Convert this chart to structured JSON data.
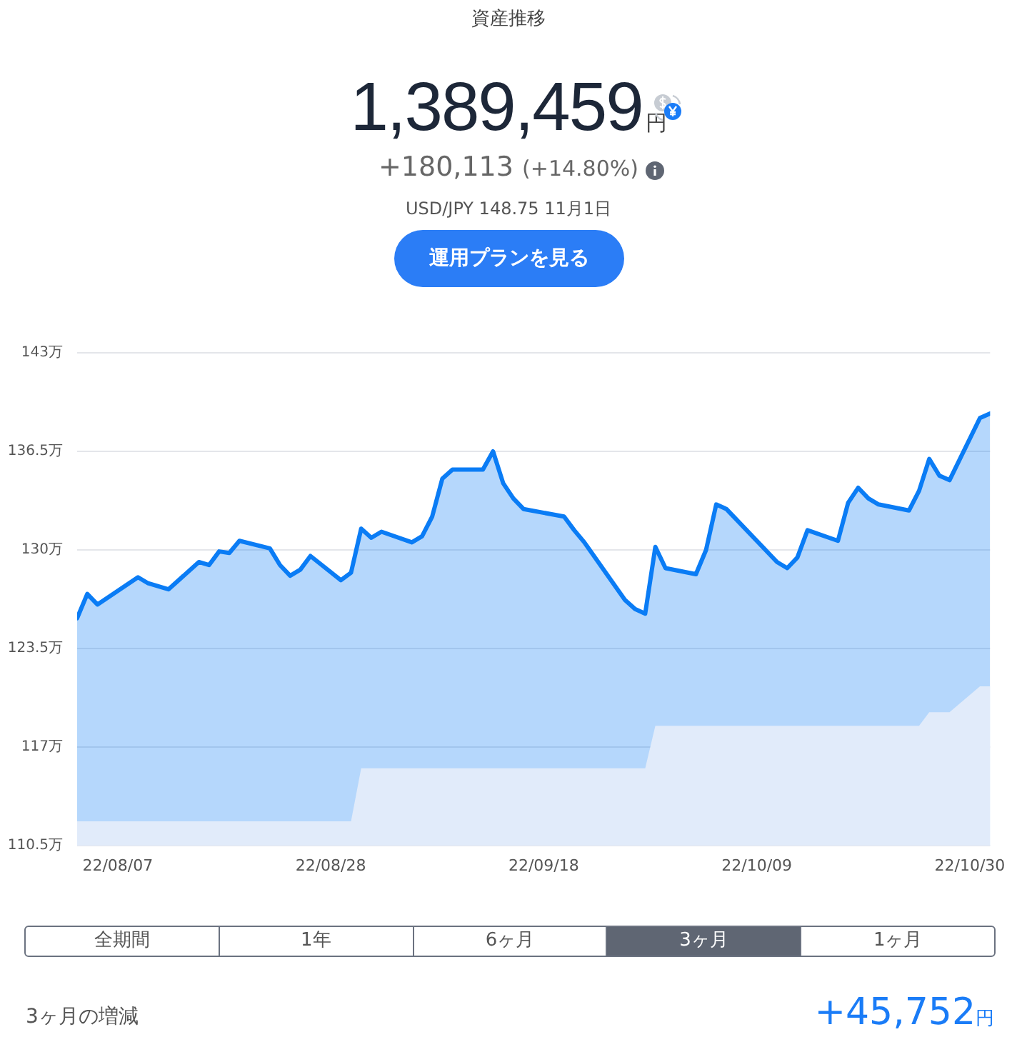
{
  "chart_data": {
    "type": "area",
    "title": "資産推移",
    "annotations": [
      "1,389,459",
      "円",
      "+180,113",
      "(+14.80%)",
      "USD/JPY 148.75 11月1日",
      "運用プランを見る",
      "全期間",
      "1年",
      "6ヶ月",
      "3ヶ月",
      "1ヶ月",
      "3ヶ月の増減",
      "+45,752",
      "円"
    ],
    "series": [
      {
        "color": "#0a7cf5",
        "x": [
          "--08-03",
          "--08-04",
          "--08-05",
          "--08-09",
          "--08-10",
          "--08-12",
          "--08-15",
          "--08-16",
          "--08-17",
          "--08-18",
          "--08-19",
          "--08-22",
          "--08-23",
          "--08-24",
          "--08-25",
          "--08-26",
          "--08-29",
          "--08-30",
          "--08-31",
          "--09-01",
          "--09-02",
          "--09-05",
          "--09-06",
          "--09-07",
          "--09-08",
          "--09-09",
          "--09-12",
          "--09-13",
          "--09-14",
          "--09-15",
          "--09-16",
          "--09-20",
          "--09-21",
          "--09-22",
          "--09-26",
          "--09-27",
          "--09-28",
          "--09-29",
          "--09-30",
          "--10-03",
          "--10-04",
          "--10-05",
          "--10-06",
          "--10-11",
          "--10-12",
          "--10-13",
          "--10-14",
          "--10-17",
          "--10-18",
          "--10-19",
          "--10-20",
          "--10-21",
          "--10-24",
          "--10-25",
          "--10-26",
          "--10-27",
          "--10-28",
          "--10-31",
          "--11-01"
        ],
        "values": [
          125.5,
          127.1,
          126.4,
          128.2,
          127.8,
          127.4,
          129.2,
          129.0,
          129.9,
          129.8,
          130.6,
          130.1,
          129.0,
          128.3,
          128.7,
          129.6,
          128.0,
          128.5,
          131.4,
          130.8,
          131.2,
          130.5,
          130.9,
          132.2,
          134.7,
          135.3,
          135.3,
          136.5,
          134.4,
          133.4,
          132.7,
          132.2,
          131.3,
          130.5,
          126.7,
          126.1,
          125.8,
          130.2,
          128.8,
          128.4,
          130.0,
          133.0,
          132.7,
          129.2,
          128.8,
          129.5,
          131.3,
          130.6,
          133.1,
          134.1,
          133.4,
          133.0,
          132.6,
          133.9,
          136.0,
          134.9,
          134.6,
          138.7,
          139.0
        ]
      },
      {
        "color": "#e1ebfa",
        "line_style": "none",
        "x": [
          "--08-03",
          "--08-30",
          "--08-31",
          "--09-28",
          "--09-29",
          "--10-25",
          "--10-26",
          "--10-28",
          "--10-31",
          "--11-01"
        ],
        "values": [
          112.1,
          112.1,
          115.6,
          115.6,
          118.4,
          118.4,
          119.3,
          119.3,
          121.0,
          121.0
        ]
      }
    ],
    "xlim": [
      "--08-03",
      "--11-01"
    ],
    "xticks": [
      {
        "value": "--08-07",
        "label": "22/08/07"
      },
      {
        "value": "--08-28",
        "label": "22/08/28"
      },
      {
        "value": "--09-18",
        "label": "22/09/18"
      },
      {
        "value": "--10-09",
        "label": "22/10/09"
      },
      {
        "value": "--10-30",
        "label": "22/10/30"
      }
    ],
    "ylim": [
      110.5,
      143
    ],
    "yticks": [
      {
        "value": 110.5,
        "label": "110.5万"
      },
      {
        "value": 117,
        "label": "117万"
      },
      {
        "value": 123.5,
        "label": "123.5万"
      },
      {
        "value": 130,
        "label": "130万"
      },
      {
        "value": 136.5,
        "label": "136.5万"
      },
      {
        "value": 143,
        "label": "143万"
      }
    ],
    "grid": "y",
    "legend": false,
    "marker": "none",
    "line_style": "solid"
  }
}
